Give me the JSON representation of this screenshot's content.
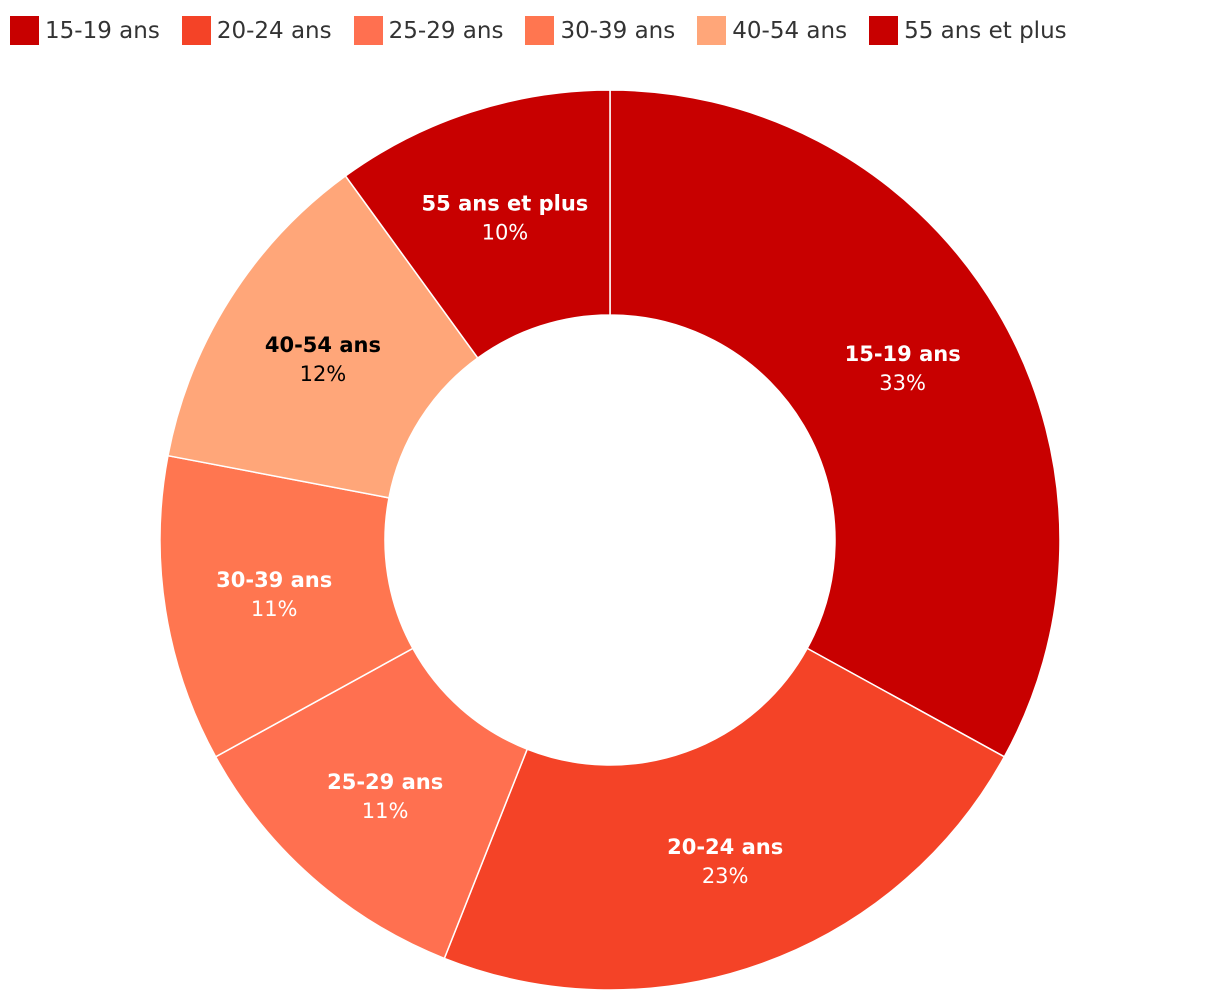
{
  "chart_data": {
    "type": "pie",
    "donut": true,
    "title": "",
    "legend_position": "top-left",
    "categories": [
      "15-19 ans",
      "20-24 ans",
      "25-29 ans",
      "30-39 ans",
      "40-54 ans",
      "55 ans et plus"
    ],
    "values": [
      33,
      23,
      11,
      11,
      12,
      10
    ],
    "value_labels": [
      "33%",
      "23%",
      "11%",
      "11%",
      "12%",
      "10%"
    ],
    "colors": [
      "#c80000",
      "#f44327",
      "#ff7050",
      "#ff7650",
      "#ffa679",
      "#c80000"
    ],
    "label_colors": [
      "#ffffff",
      "#ffffff",
      "#ffffff",
      "#ffffff",
      "#000000",
      "#ffffff"
    ]
  }
}
